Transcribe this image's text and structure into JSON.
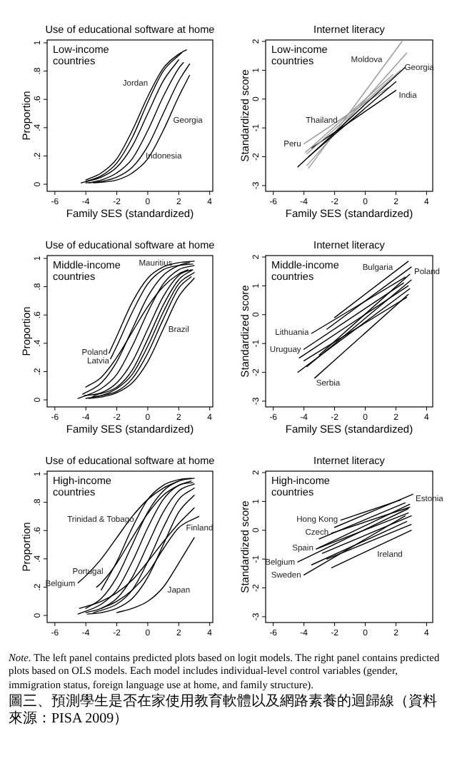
{
  "chart_data": [
    {
      "type": "line",
      "title": "Use of educational software at home",
      "xlabel": "Family SES (standardized)",
      "ylabel": "Proportion",
      "xlim": [
        -6.5,
        4.2
      ],
      "ylim": [
        -0.05,
        1.02
      ],
      "xticks": [
        -6,
        -4,
        -2,
        0,
        2,
        4
      ],
      "yticks": [
        0,
        {
          "value": 0.2,
          "label": ".2"
        },
        {
          "value": 0.4,
          "label": ".4"
        },
        {
          "value": 0.6,
          "label": ".6"
        },
        {
          "value": 0.8,
          "label": ".8"
        },
        1
      ],
      "annotations": [
        "Low-income countries"
      ],
      "series": [
        {
          "name": "Jordan",
          "color": "#000000",
          "x": [
            -4,
            -3,
            -2,
            -1,
            0,
            1,
            2,
            2.5
          ],
          "values": [
            0.03,
            0.08,
            0.18,
            0.38,
            0.62,
            0.82,
            0.92,
            0.95
          ]
        },
        {
          "color": "#000000",
          "x": [
            -4.3,
            -3,
            -2,
            -1,
            0,
            1,
            2
          ],
          "values": [
            0.01,
            0.05,
            0.12,
            0.27,
            0.5,
            0.73,
            0.88
          ]
        },
        {
          "color": "#000000",
          "x": [
            -3.8,
            -3,
            -2,
            -1,
            0,
            1,
            2,
            2.3
          ],
          "values": [
            0.01,
            0.03,
            0.08,
            0.18,
            0.38,
            0.62,
            0.82,
            0.86
          ]
        },
        {
          "name": "Indonesia",
          "color": "#000000",
          "x": [
            -4,
            -3,
            -2,
            -1,
            0,
            1,
            2,
            2.7
          ],
          "values": [
            0.01,
            0.02,
            0.05,
            0.12,
            0.27,
            0.5,
            0.73,
            0.85
          ]
        },
        {
          "name": "Georgia",
          "color": "#000000",
          "x": [
            -3.5,
            -2,
            -1,
            0,
            1,
            2,
            2.7
          ],
          "values": [
            0.01,
            0.03,
            0.08,
            0.18,
            0.38,
            0.62,
            0.77
          ]
        },
        {
          "color": "#000000",
          "x": [
            -4,
            -3,
            -2,
            -1,
            0,
            1,
            2.2
          ],
          "values": [
            0.02,
            0.06,
            0.15,
            0.33,
            0.58,
            0.8,
            0.93
          ]
        }
      ]
    },
    {
      "type": "line",
      "title": "Internet literacy",
      "xlabel": "Family SES (standardized)",
      "ylabel": "Standardized score",
      "xlim": [
        -6.5,
        4.4
      ],
      "ylim": [
        -3.2,
        2.05
      ],
      "xticks": [
        -6,
        -4,
        -2,
        0,
        2,
        4
      ],
      "yticks": [
        -3,
        -2,
        -1,
        0,
        1,
        2
      ],
      "annotations": [
        "Low-income countries"
      ],
      "series": [
        {
          "name": "Moldova",
          "color": "#999999",
          "x": [
            -3.7,
            2.4
          ],
          "values": [
            -2.4,
            2.0
          ]
        },
        {
          "name": "Georgia",
          "color": "#999999",
          "x": [
            -3.8,
            2.7
          ],
          "values": [
            -2.3,
            1.6
          ]
        },
        {
          "name": "India",
          "color": "#000000",
          "x": [
            -3.5,
            2.0
          ],
          "values": [
            -1.7,
            0.3
          ]
        },
        {
          "name": "Peru",
          "color": "#999999",
          "x": [
            -4.0,
            1.5
          ],
          "values": [
            -1.55,
            0.4
          ]
        },
        {
          "name": "Thailand",
          "color": "#999999",
          "x": [
            -3.9,
            1.8
          ],
          "values": [
            -1.85,
            0.85
          ]
        },
        {
          "color": "#000000",
          "x": [
            -4.4,
            2.6
          ],
          "values": [
            -2.35,
            1.1
          ]
        },
        {
          "color": "#000000",
          "x": [
            -3.7,
            2.0
          ],
          "values": [
            -2.0,
            0.6
          ]
        },
        {
          "color": "#999999",
          "x": [
            -3.8,
            2.3
          ],
          "values": [
            -1.9,
            1.0
          ]
        }
      ]
    },
    {
      "type": "line",
      "title": "Use of educational software at home",
      "xlabel": "Family SES (standardized)",
      "ylabel": "Proportion",
      "xlim": [
        -6.5,
        4.2
      ],
      "ylim": [
        -0.05,
        1.02
      ],
      "xticks": [
        -6,
        -4,
        -2,
        0,
        2,
        4
      ],
      "yticks": [
        0,
        {
          "value": 0.2,
          "label": ".2"
        },
        {
          "value": 0.4,
          "label": ".4"
        },
        {
          "value": 0.6,
          "label": ".6"
        },
        {
          "value": 0.8,
          "label": ".8"
        },
        1
      ],
      "annotations": [
        "Middle-income countries"
      ],
      "series": [
        {
          "name": "Poland",
          "color": "#000000",
          "x": [
            -2.5,
            -2,
            -1,
            0,
            1,
            2,
            3
          ],
          "values": [
            0.33,
            0.45,
            0.69,
            0.86,
            0.94,
            0.97,
            0.98
          ]
        },
        {
          "name": "Latvia",
          "color": "#000000",
          "x": [
            -2.4,
            -2,
            -1,
            0,
            1,
            2,
            2.9
          ],
          "values": [
            0.29,
            0.38,
            0.62,
            0.82,
            0.92,
            0.95,
            0.96
          ]
        },
        {
          "name": "Mauritius",
          "color": "#000000",
          "x": [
            -4.2,
            -3,
            -2,
            -1,
            0,
            1,
            2,
            2.7
          ],
          "values": [
            0.04,
            0.12,
            0.27,
            0.5,
            0.73,
            0.88,
            0.95,
            0.97
          ]
        },
        {
          "color": "#000000",
          "x": [
            -4.5,
            -3,
            -2,
            -1,
            0,
            1,
            2,
            3
          ],
          "values": [
            0.01,
            0.08,
            0.18,
            0.38,
            0.62,
            0.82,
            0.92,
            0.95
          ]
        },
        {
          "color": "#000000",
          "x": [
            -4.1,
            -3,
            -2,
            -1,
            0,
            1,
            2,
            2.8
          ],
          "values": [
            0.03,
            0.05,
            0.12,
            0.27,
            0.5,
            0.73,
            0.88,
            0.92
          ]
        },
        {
          "color": "#000000",
          "x": [
            -4,
            -3,
            -2,
            -1,
            0,
            1,
            2,
            3
          ],
          "values": [
            0.01,
            0.03,
            0.08,
            0.18,
            0.38,
            0.62,
            0.82,
            0.9
          ]
        },
        {
          "name": "Brazil",
          "color": "#000000",
          "x": [
            -3.8,
            -3,
            -2,
            -1,
            0,
            1,
            2,
            3
          ],
          "values": [
            0.01,
            0.02,
            0.05,
            0.12,
            0.27,
            0.5,
            0.73,
            0.86
          ]
        },
        {
          "color": "#000000",
          "x": [
            -3.5,
            -2,
            -1,
            0,
            1,
            2,
            2.9
          ],
          "values": [
            0.03,
            0.09,
            0.21,
            0.43,
            0.67,
            0.85,
            0.92
          ]
        },
        {
          "color": "#000000",
          "x": [
            -3.6,
            -3,
            -2,
            -1,
            0,
            1,
            2,
            2.8
          ],
          "values": [
            0.02,
            0.03,
            0.06,
            0.15,
            0.33,
            0.57,
            0.79,
            0.87
          ]
        },
        {
          "color": "#000000",
          "x": [
            -4.0,
            -3,
            -2,
            -1,
            0,
            1,
            2,
            2.6
          ],
          "values": [
            0.09,
            0.16,
            0.3,
            0.48,
            0.66,
            0.8,
            0.89,
            0.92
          ]
        }
      ]
    },
    {
      "type": "line",
      "title": "Internet literacy",
      "xlabel": "Family SES (standardized)",
      "ylabel": "Standardized score",
      "xlim": [
        -6.5,
        4.4
      ],
      "ylim": [
        -3.2,
        2.05
      ],
      "xticks": [
        -6,
        -4,
        -2,
        0,
        2,
        4
      ],
      "yticks": [
        -3,
        -2,
        -1,
        0,
        1,
        2
      ],
      "annotations": [
        "Middle-income countries"
      ],
      "series": [
        {
          "name": "Bulgaria",
          "color": "#000000",
          "x": [
            -2.0,
            2.8
          ],
          "values": [
            -0.1,
            1.85
          ]
        },
        {
          "name": "Poland",
          "color": "#000000",
          "x": [
            -2.5,
            3.0
          ],
          "values": [
            -0.5,
            1.65
          ]
        },
        {
          "name": "Lithuania",
          "color": "#000000",
          "x": [
            -3.5,
            2.6
          ],
          "values": [
            -0.65,
            1.3
          ]
        },
        {
          "color": "#000000",
          "x": [
            -4.3,
            2.8
          ],
          "values": [
            -1.5,
            1.0
          ]
        },
        {
          "name": "Uruguay",
          "color": "#000000",
          "x": [
            -4.0,
            2.5
          ],
          "values": [
            -1.2,
            1.1
          ]
        },
        {
          "color": "#000000",
          "x": [
            -4.4,
            2.9
          ],
          "values": [
            -2.0,
            0.9
          ]
        },
        {
          "name": "Serbia",
          "color": "#000000",
          "x": [
            -3.3,
            2.8
          ],
          "values": [
            -2.2,
            0.7
          ]
        },
        {
          "color": "#000000",
          "x": [
            -3.8,
            3.0
          ],
          "values": [
            -1.8,
            1.2
          ]
        },
        {
          "color": "#000000",
          "x": [
            -3.0,
            2.9
          ],
          "values": [
            -1.4,
            1.4
          ]
        },
        {
          "color": "#000000",
          "x": [
            -4.0,
            2.7
          ],
          "values": [
            -1.6,
            0.6
          ]
        }
      ]
    },
    {
      "type": "line",
      "title": "Use of educational software at home",
      "ylabel": "Proportion",
      "xlim": [
        -6.5,
        4.2
      ],
      "ylim": [
        -0.05,
        1.02
      ],
      "xticks": [
        -6,
        -4,
        -2,
        0,
        2,
        4
      ],
      "yticks": [
        0,
        {
          "value": 0.2,
          "label": ".2"
        },
        {
          "value": 0.4,
          "label": ".4"
        },
        {
          "value": 0.6,
          "label": ".6"
        },
        {
          "value": 0.8,
          "label": ".8"
        },
        1
      ],
      "annotations": [
        "High-income countries"
      ],
      "series": [
        {
          "name": "Belgium",
          "color": "#000000",
          "x": [
            -4.5,
            -4,
            -3,
            -2,
            -1,
            0,
            1,
            2
          ],
          "values": [
            0.23,
            0.28,
            0.4,
            0.55,
            0.7,
            0.82,
            0.9,
            0.95
          ]
        },
        {
          "name": "Portugal",
          "color": "#000000",
          "x": [
            -3.3,
            -3,
            -2,
            -1,
            0,
            1,
            2,
            2.8
          ],
          "values": [
            0.2,
            0.23,
            0.37,
            0.55,
            0.72,
            0.85,
            0.92,
            0.95
          ]
        },
        {
          "color": "#000000",
          "x": [
            -4,
            -3,
            -2,
            -1,
            0,
            1,
            2,
            3
          ],
          "values": [
            0.05,
            0.12,
            0.27,
            0.5,
            0.73,
            0.88,
            0.95,
            0.97
          ]
        },
        {
          "color": "#000000",
          "x": [
            -4.5,
            -3,
            -2,
            -1,
            0,
            1,
            2,
            2.9
          ],
          "values": [
            0.01,
            0.08,
            0.18,
            0.38,
            0.62,
            0.82,
            0.92,
            0.94
          ]
        },
        {
          "color": "#000000",
          "x": [
            -4,
            -3,
            -2,
            -1,
            0,
            1,
            2,
            3
          ],
          "values": [
            0.02,
            0.05,
            0.12,
            0.27,
            0.5,
            0.73,
            0.88,
            0.93
          ]
        },
        {
          "color": "#000000",
          "x": [
            -3.5,
            -2,
            -1,
            0,
            1,
            2,
            3
          ],
          "values": [
            0.02,
            0.08,
            0.18,
            0.38,
            0.62,
            0.82,
            0.9
          ]
        },
        {
          "color": "#000000",
          "x": [
            -3.9,
            -3,
            -2,
            -1,
            0,
            1,
            2,
            3
          ],
          "values": [
            0.01,
            0.02,
            0.05,
            0.12,
            0.27,
            0.5,
            0.73,
            0.85
          ]
        },
        {
          "name": "Finland",
          "color": "#000000",
          "x": [
            -3,
            -2,
            -1,
            0,
            1,
            2,
            3.3
          ],
          "values": [
            0.05,
            0.1,
            0.18,
            0.3,
            0.47,
            0.62,
            0.7
          ]
        },
        {
          "name": "Japan",
          "color": "#000000",
          "x": [
            -2,
            -1,
            0,
            1,
            2,
            3
          ],
          "values": [
            0.02,
            0.05,
            0.1,
            0.2,
            0.37,
            0.55
          ]
        },
        {
          "color": "#000000",
          "x": [
            -4.4,
            -3,
            -2,
            -1,
            0,
            1,
            2,
            3
          ],
          "values": [
            0.05,
            0.1,
            0.16,
            0.25,
            0.38,
            0.52,
            0.65,
            0.76
          ]
        },
        {
          "name": "Trinidad & Tobago",
          "color": "#000000",
          "x": [
            -3,
            -2,
            -1,
            0,
            1,
            2,
            2.8
          ],
          "values": [
            0.18,
            0.38,
            0.62,
            0.82,
            0.92,
            0.96,
            0.97
          ]
        }
      ]
    },
    {
      "type": "line",
      "title": "Internet literacy",
      "ylabel": "Standardized score",
      "xlim": [
        -6.5,
        4.4
      ],
      "ylim": [
        -3.2,
        2.05
      ],
      "xticks": [
        -6,
        -4,
        -2,
        0,
        2,
        4
      ],
      "yticks": [
        -3,
        -2,
        -1,
        0,
        1,
        2
      ],
      "annotations": [
        "High-income countries"
      ],
      "series": [
        {
          "name": "Estonia",
          "color": "#000000",
          "x": [
            -2.0,
            3.1
          ],
          "values": [
            0.1,
            1.25
          ]
        },
        {
          "name": "Hong Kong",
          "color": "#000000",
          "x": [
            -1.6,
            2.3
          ],
          "values": [
            0.35,
            1.05
          ]
        },
        {
          "name": "Czech",
          "color": "#000000",
          "x": [
            -2.2,
            2.9
          ],
          "values": [
            -0.1,
            0.8
          ]
        },
        {
          "name": "Spain",
          "color": "#000000",
          "x": [
            -3.2,
            2.8
          ],
          "values": [
            -0.65,
            0.6
          ]
        },
        {
          "name": "Belgium",
          "color": "#000000",
          "x": [
            -4.4,
            2.8
          ],
          "values": [
            -1.1,
            0.75
          ]
        },
        {
          "name": "Sweden",
          "color": "#000000",
          "x": [
            -4.0,
            2.6
          ],
          "values": [
            -1.55,
            0.5
          ]
        },
        {
          "color": "#000000",
          "x": [
            -2.5,
            3.0
          ],
          "values": [
            -1.0,
            0.2
          ]
        },
        {
          "color": "#000000",
          "x": [
            -3.0,
            2.9
          ],
          "values": [
            -0.6,
            0.9
          ]
        },
        {
          "color": "#000000",
          "x": [
            -3.5,
            2.7
          ],
          "values": [
            -1.2,
            0.3
          ]
        },
        {
          "color": "#000000",
          "x": [
            -2.8,
            3.0
          ],
          "values": [
            -0.8,
            0.5
          ]
        },
        {
          "color": "#000000",
          "x": [
            -3.0,
            2.6
          ],
          "values": [
            -0.3,
            0.95
          ]
        },
        {
          "name": "Ireland",
          "color": "#000000",
          "x": [
            -2.2,
            3.0
          ],
          "values": [
            -1.3,
            0.0
          ]
        }
      ]
    },
    {
      "type": "other",
      "annotations": [
        "*Note.* The left panel contains predicted plots based on logit models. The right panel contains predicted plots based on OLS models. Each model includes individual-level control variables (gender, immigration status, foreign language use at home, and family structure).",
        "圖三、預測學生是否在家使用教育軟體以及網路素養的迴歸線（資料來源：PISA 2009）"
      ]
    }
  ]
}
